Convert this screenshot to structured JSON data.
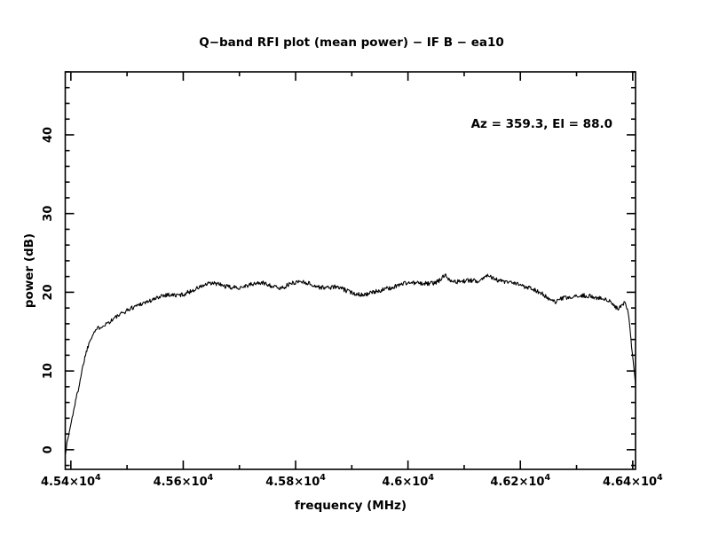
{
  "page": {
    "background": "#ffffff",
    "foreground": "#000000"
  },
  "chart_data": {
    "type": "line",
    "title": "Q−band RFI plot (mean power) − IF B − ea10",
    "xlabel": "frequency (MHz)",
    "ylabel": "power (dB)",
    "annotation": {
      "text": "Az = 359.3, El = 88.0"
    },
    "xlim": [
      45390,
      46405
    ],
    "ylim": [
      -2.5,
      48
    ],
    "grid": false,
    "frame": "box-inward-ticks",
    "x_ticks": {
      "minor_start": 45400,
      "minor_end": 46400,
      "minor_step": 100,
      "majors": [
        {
          "v": 45400,
          "label": "4.54×10^4"
        },
        {
          "v": 45600,
          "label": "4.56×10^4"
        },
        {
          "v": 45800,
          "label": "4.58×10^4"
        },
        {
          "v": 46000,
          "label": "4.6×10^4"
        },
        {
          "v": 46200,
          "label": "4.62×10^4"
        },
        {
          "v": 46400,
          "label": "4.64×10^4"
        }
      ]
    },
    "y_ticks": {
      "minor_start": -2,
      "minor_end": 48,
      "minor_step": 2,
      "majors": [
        {
          "v": 0,
          "label": "0"
        },
        {
          "v": 10,
          "label": "10"
        },
        {
          "v": 20,
          "label": "20"
        },
        {
          "v": 30,
          "label": "30"
        },
        {
          "v": 40,
          "label": "40"
        }
      ]
    },
    "series": [
      {
        "name": "mean power",
        "color": "#000000",
        "noise_amplitude_db": 0.28,
        "noise_seed": 1337,
        "points": [
          [
            45390.5,
            -0.4
          ],
          [
            45392,
            0.4
          ],
          [
            45395,
            1.5
          ],
          [
            45400,
            3.2
          ],
          [
            45406,
            5.4
          ],
          [
            45413,
            7.6
          ],
          [
            45419,
            9.8
          ],
          [
            45425,
            11.8
          ],
          [
            45432,
            13.5
          ],
          [
            45438,
            14.6
          ],
          [
            45444,
            15.2
          ],
          [
            45452,
            15.6
          ],
          [
            45460,
            15.9
          ],
          [
            45470,
            16.3
          ],
          [
            45479,
            16.8
          ],
          [
            45489,
            17.2
          ],
          [
            45500,
            17.7
          ],
          [
            45511,
            18.1
          ],
          [
            45523,
            18.5
          ],
          [
            45536,
            18.8
          ],
          [
            45549,
            19.1
          ],
          [
            45561,
            19.6
          ],
          [
            45574,
            19.7
          ],
          [
            45587,
            19.6
          ],
          [
            45599,
            19.7
          ],
          [
            45609,
            20.0
          ],
          [
            45622,
            20.4
          ],
          [
            45634,
            20.8
          ],
          [
            45647,
            21.1
          ],
          [
            45660,
            21.1
          ],
          [
            45672,
            20.8
          ],
          [
            45685,
            20.6
          ],
          [
            45698,
            20.6
          ],
          [
            45710,
            20.8
          ],
          [
            45723,
            21.0
          ],
          [
            45735,
            21.2
          ],
          [
            45748,
            21.1
          ],
          [
            45761,
            20.7
          ],
          [
            45773,
            20.5
          ],
          [
            45786,
            20.9
          ],
          [
            45796,
            21.2
          ],
          [
            45808,
            21.4
          ],
          [
            45821,
            21.2
          ],
          [
            45834,
            20.8
          ],
          [
            45846,
            20.6
          ],
          [
            45859,
            20.6
          ],
          [
            45872,
            20.7
          ],
          [
            45884,
            20.4
          ],
          [
            45897,
            20.0
          ],
          [
            45910,
            19.8
          ],
          [
            45922,
            19.7
          ],
          [
            45935,
            19.9
          ],
          [
            45948,
            20.2
          ],
          [
            45960,
            20.4
          ],
          [
            45973,
            20.6
          ],
          [
            45985,
            21.0
          ],
          [
            45998,
            21.2
          ],
          [
            46011,
            21.2
          ],
          [
            46023,
            21.1
          ],
          [
            46036,
            21.1
          ],
          [
            46049,
            21.2
          ],
          [
            46060,
            21.7
          ],
          [
            46066,
            22.3
          ],
          [
            46073,
            21.7
          ],
          [
            46084,
            21.3
          ],
          [
            46096,
            21.4
          ],
          [
            46109,
            21.5
          ],
          [
            46122,
            21.4
          ],
          [
            46134,
            21.8
          ],
          [
            46144,
            22.3
          ],
          [
            46153,
            21.7
          ],
          [
            46166,
            21.4
          ],
          [
            46179,
            21.2
          ],
          [
            46191,
            21.1
          ],
          [
            46204,
            20.8
          ],
          [
            46217,
            20.6
          ],
          [
            46226,
            20.3
          ],
          [
            46239,
            19.8
          ],
          [
            46251,
            19.1
          ],
          [
            46262,
            18.7
          ],
          [
            46273,
            19.2
          ],
          [
            46286,
            19.3
          ],
          [
            46299,
            19.4
          ],
          [
            46311,
            19.6
          ],
          [
            46324,
            19.5
          ],
          [
            46337,
            19.3
          ],
          [
            46349,
            19.1
          ],
          [
            46360,
            18.8
          ],
          [
            46368,
            18.1
          ],
          [
            46375,
            17.9
          ],
          [
            46381,
            18.3
          ],
          [
            46387,
            18.8
          ],
          [
            46392,
            17.5
          ],
          [
            46395,
            15.5
          ],
          [
            46398,
            13.0
          ],
          [
            46402,
            10.5
          ],
          [
            46405,
            8.2
          ]
        ]
      }
    ]
  }
}
